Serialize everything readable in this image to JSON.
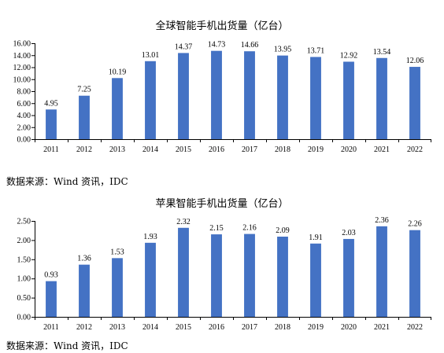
{
  "charts": [
    {
      "source": "数据来源：Wind 资讯，IDC",
      "chart_data": {
        "type": "bar",
        "title": "全球智能手机出货量（亿台）",
        "xlabel": "",
        "ylabel": "",
        "categories": [
          "2011",
          "2012",
          "2013",
          "2014",
          "2015",
          "2016",
          "2017",
          "2018",
          "2019",
          "2020",
          "2021",
          "2022"
        ],
        "values": [
          4.95,
          7.25,
          10.19,
          13.01,
          14.37,
          14.73,
          14.66,
          13.95,
          13.71,
          12.92,
          13.54,
          12.06
        ],
        "value_labels": [
          "4.95",
          "7.25",
          "10.19",
          "13.01",
          "14.37",
          "14.73",
          "14.66",
          "13.95",
          "13.71",
          "12.92",
          "13.54",
          "12.06"
        ],
        "ylim": [
          0,
          16
        ],
        "yticks": [
          "0.00",
          "2.00",
          "4.00",
          "6.00",
          "8.00",
          "10.00",
          "12.00",
          "14.00",
          "16.00"
        ],
        "bar_color": "#4472C4",
        "grid": false,
        "legend": "none"
      }
    },
    {
      "source": "数据来源：Wind 资讯，IDC",
      "chart_data": {
        "type": "bar",
        "title": "苹果智能手机出货量（亿台）",
        "xlabel": "",
        "ylabel": "",
        "categories": [
          "2011",
          "2012",
          "2013",
          "2014",
          "2015",
          "2016",
          "2017",
          "2018",
          "2019",
          "2020",
          "2021",
          "2022"
        ],
        "values": [
          0.93,
          1.36,
          1.53,
          1.93,
          2.32,
          2.15,
          2.16,
          2.09,
          1.91,
          2.03,
          2.36,
          2.26
        ],
        "value_labels": [
          "0.93",
          "1.36",
          "1.53",
          "1.93",
          "2.32",
          "2.15",
          "2.16",
          "2.09",
          "1.91",
          "2.03",
          "2.36",
          "2.26"
        ],
        "ylim": [
          0,
          2.5
        ],
        "yticks": [
          "0.00",
          "0.50",
          "1.00",
          "1.50",
          "2.00",
          "2.50"
        ],
        "bar_color": "#4472C4",
        "grid": false,
        "legend": "none"
      }
    }
  ]
}
